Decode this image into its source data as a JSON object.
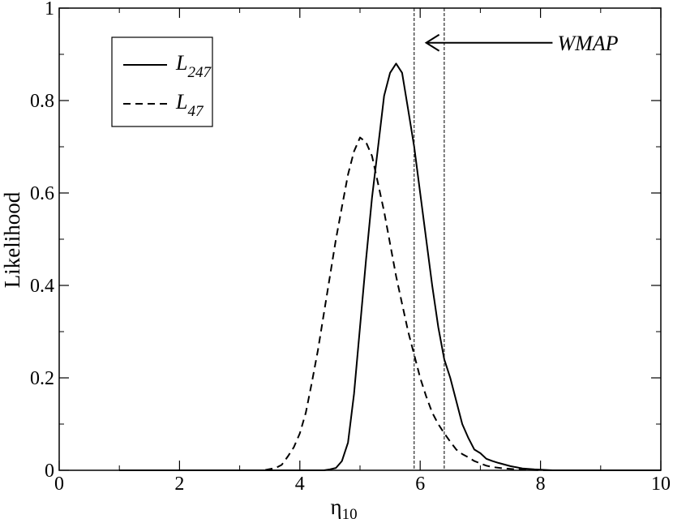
{
  "chart_data": {
    "type": "line",
    "xlabel": "η",
    "xlabel_sub": "10",
    "ylabel": "Likelihood",
    "xlim": [
      0,
      10
    ],
    "ylim": [
      0,
      1
    ],
    "xticks": [
      0,
      2,
      4,
      6,
      8,
      10
    ],
    "yticks": [
      0,
      0.2,
      0.4,
      0.6,
      0.8,
      1
    ],
    "xtick_labels": [
      "0",
      "2",
      "4",
      "6",
      "8",
      "10"
    ],
    "ytick_labels": [
      "0",
      "0.2",
      "0.4",
      "0.6",
      "0.8",
      "1"
    ],
    "grid": false,
    "legend_position": "top-left",
    "series": [
      {
        "name": "L",
        "name_sub": "247",
        "style": "solid",
        "x": [
          1.0,
          4.4,
          4.5,
          4.6,
          4.7,
          4.8,
          4.9,
          5.0,
          5.1,
          5.2,
          5.3,
          5.4,
          5.5,
          5.6,
          5.7,
          5.8,
          5.9,
          6.0,
          6.1,
          6.2,
          6.3,
          6.4,
          6.5,
          6.6,
          6.7,
          6.8,
          6.9,
          7.0,
          7.1,
          7.2,
          7.3,
          7.5,
          7.7,
          7.9,
          8.2,
          10.0
        ],
        "y": [
          0.0,
          0.0,
          0.002,
          0.005,
          0.02,
          0.06,
          0.165,
          0.31,
          0.455,
          0.59,
          0.7,
          0.81,
          0.86,
          0.88,
          0.86,
          0.78,
          0.7,
          0.6,
          0.5,
          0.4,
          0.31,
          0.24,
          0.2,
          0.15,
          0.1,
          0.07,
          0.045,
          0.037,
          0.025,
          0.02,
          0.016,
          0.009,
          0.004,
          0.002,
          0.0,
          0.0
        ]
      },
      {
        "name": "L",
        "name_sub": "47",
        "style": "dashed",
        "x": [
          1.0,
          3.4,
          3.6,
          3.7,
          3.8,
          3.9,
          4.0,
          4.1,
          4.2,
          4.3,
          4.4,
          4.5,
          4.6,
          4.7,
          4.8,
          4.9,
          5.0,
          5.1,
          5.2,
          5.3,
          5.4,
          5.5,
          5.6,
          5.7,
          5.8,
          5.9,
          6.0,
          6.1,
          6.2,
          6.3,
          6.4,
          6.5,
          6.6,
          6.7,
          6.8,
          6.9,
          7.0,
          7.1,
          7.2,
          7.4,
          7.6,
          8.0,
          10.0
        ],
        "y": [
          0.0,
          0.0,
          0.005,
          0.012,
          0.03,
          0.05,
          0.08,
          0.125,
          0.19,
          0.26,
          0.34,
          0.42,
          0.5,
          0.57,
          0.64,
          0.69,
          0.72,
          0.71,
          0.68,
          0.62,
          0.56,
          0.49,
          0.42,
          0.36,
          0.3,
          0.25,
          0.2,
          0.16,
          0.125,
          0.1,
          0.08,
          0.062,
          0.045,
          0.035,
          0.028,
          0.02,
          0.015,
          0.01,
          0.007,
          0.004,
          0.002,
          0.0,
          0.0
        ]
      }
    ],
    "vlines": [
      5.9,
      6.4
    ],
    "annotation": {
      "text": "WMAP",
      "arrow_from_x": 8.2,
      "arrow_to_x": 6.1,
      "y": 0.925
    }
  }
}
